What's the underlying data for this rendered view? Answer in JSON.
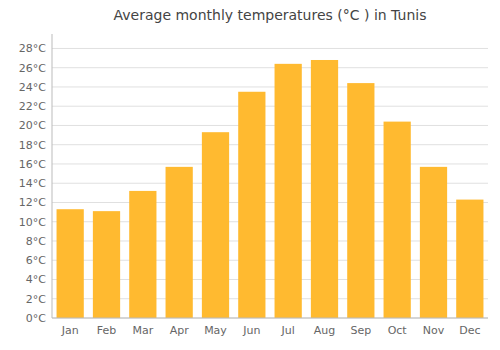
{
  "chart_data": {
    "type": "bar",
    "title": "Average monthly temperatures (°C ) in Tunis",
    "categories": [
      "Jan",
      "Feb",
      "Mar",
      "Apr",
      "May",
      "Jun",
      "Jul",
      "Aug",
      "Sep",
      "Oct",
      "Nov",
      "Dec"
    ],
    "values": [
      11.3,
      11.1,
      13.2,
      15.7,
      19.3,
      23.5,
      26.4,
      26.8,
      24.4,
      20.4,
      15.7,
      12.3
    ],
    "color": "#FFBA30",
    "ylim": [
      0,
      29.5
    ],
    "yticks": [
      {
        "value": 0,
        "label": "0°C"
      },
      {
        "value": 2,
        "label": "2°C"
      },
      {
        "value": 4,
        "label": "4°C"
      },
      {
        "value": 6,
        "label": "6°C"
      },
      {
        "value": 8,
        "label": "8°C"
      },
      {
        "value": 10,
        "label": "10°C"
      },
      {
        "value": 12,
        "label": "12°C"
      },
      {
        "value": 14,
        "label": "14°C"
      },
      {
        "value": 16,
        "label": "16°C"
      },
      {
        "value": 18,
        "label": "18°C"
      },
      {
        "value": 20,
        "label": "20°C"
      },
      {
        "value": 22,
        "label": "22°C"
      },
      {
        "value": 24,
        "label": "24°C"
      },
      {
        "value": 26,
        "label": "26°C"
      },
      {
        "value": 28,
        "label": "28°C"
      }
    ],
    "grid": true
  }
}
